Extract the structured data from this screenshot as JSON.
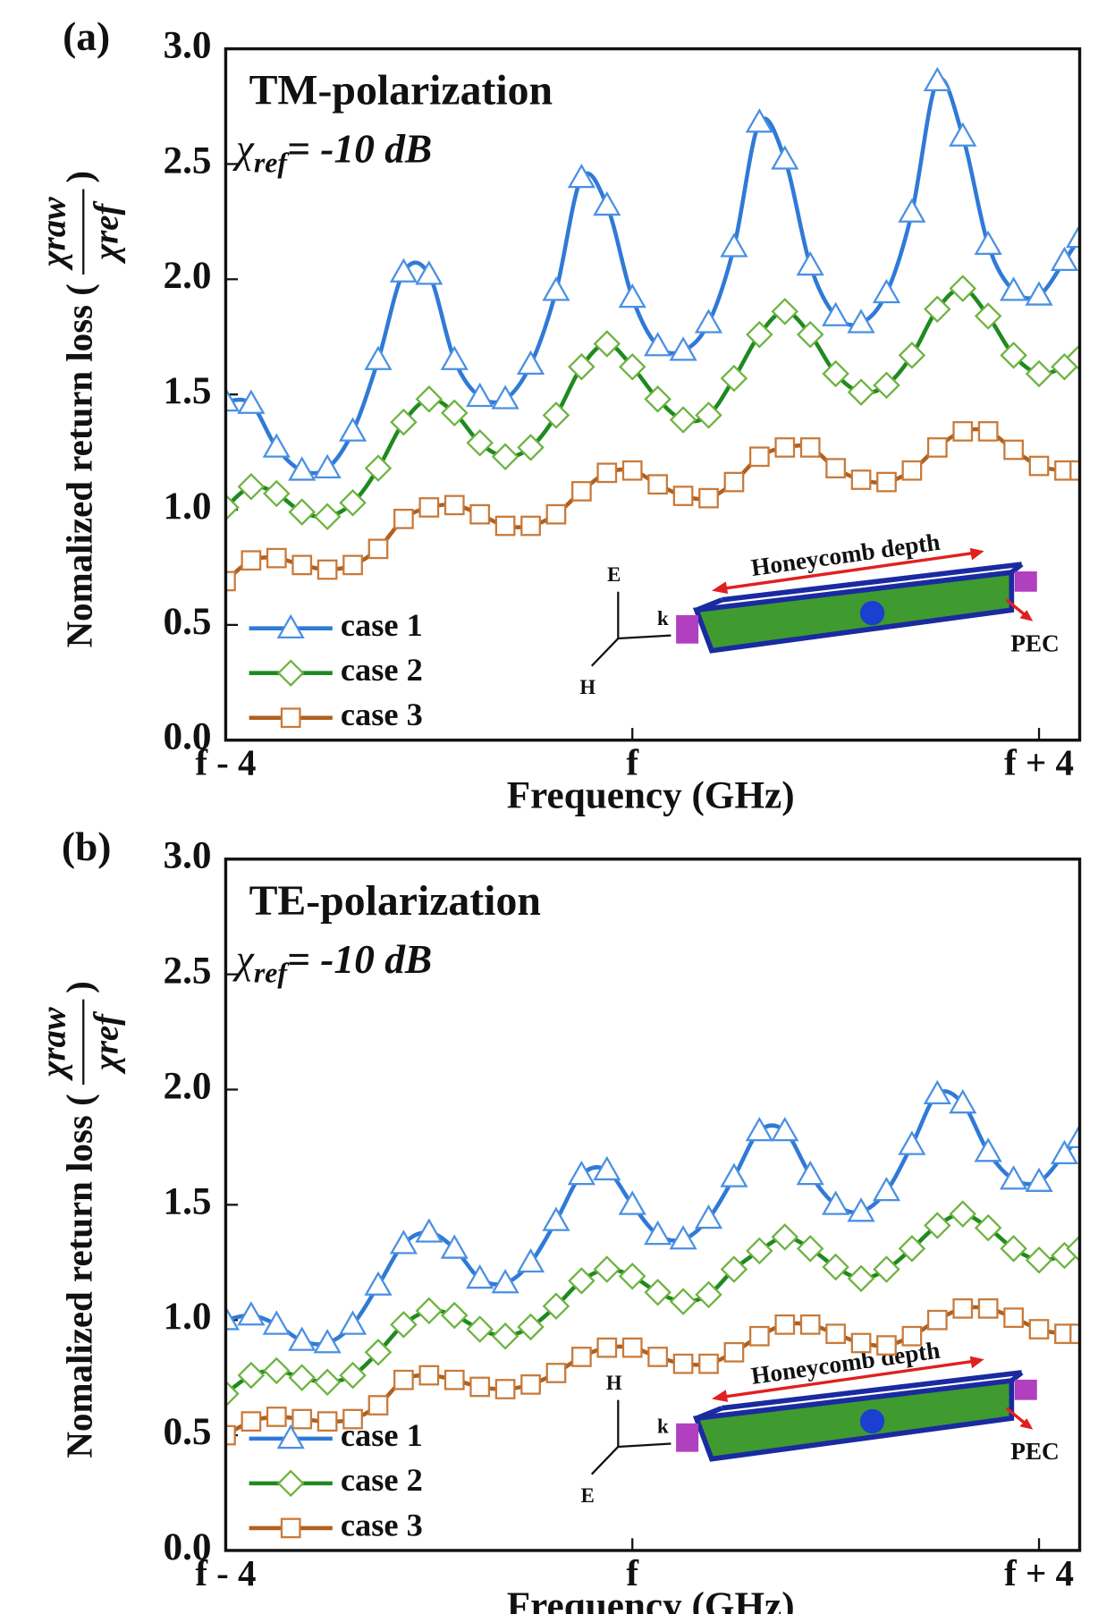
{
  "chart_data": [
    {
      "type": "line",
      "panel_label": "(a)",
      "annotation": "TM-polarization",
      "reference_label": {
        "symbol": "χ",
        "subscript": "ref",
        "text": "= -10 dB"
      },
      "ylabel": "Nomalized return loss (",
      "ylabel_fraction": {
        "numerator": "χraw",
        "denominator": "χref"
      },
      "ylabel_close": ")",
      "xlabel": "Frequency (GHz)",
      "xlim": [
        -4,
        4.4
      ],
      "ylim": [
        0,
        3
      ],
      "xticks": [
        {
          "value": -4,
          "label": "f - 4"
        },
        {
          "value": 0,
          "label": "f"
        },
        {
          "value": 4,
          "label": "f + 4"
        }
      ],
      "yticks": [
        {
          "value": 0,
          "label": "0.0"
        },
        {
          "value": 0.5,
          "label": "0.5"
        },
        {
          "value": 1,
          "label": "1.0"
        },
        {
          "value": 1.5,
          "label": "1.5"
        },
        {
          "value": 2,
          "label": "2.0"
        },
        {
          "value": 2.5,
          "label": "2.5"
        },
        {
          "value": 3,
          "label": "3.0"
        }
      ],
      "legend": "lower left",
      "inset_labels": {
        "depth": "Honeycomb depth",
        "pec": "PEC",
        "up": "E",
        "k": "k",
        "down": "H"
      },
      "x": [
        -4,
        -3.75,
        -3.5,
        -3.25,
        -3,
        -2.75,
        -2.5,
        -2.25,
        -2,
        -1.75,
        -1.5,
        -1.25,
        -1,
        -0.75,
        -0.5,
        -0.25,
        0,
        0.25,
        0.5,
        0.75,
        1,
        1.25,
        1.5,
        1.75,
        2,
        2.25,
        2.5,
        2.75,
        3,
        3.25,
        3.5,
        3.75,
        4,
        4.25,
        4.4
      ],
      "series": [
        {
          "name": "case 1",
          "color": "#2f7ad6",
          "marker_color": "#4a90e2",
          "marker": "triangle",
          "values": [
            1.47,
            1.46,
            1.27,
            1.17,
            1.18,
            1.34,
            1.65,
            2.03,
            2.02,
            1.65,
            1.49,
            1.48,
            1.63,
            1.95,
            2.44,
            2.32,
            1.92,
            1.71,
            1.69,
            1.81,
            2.14,
            2.68,
            2.52,
            2.06,
            1.84,
            1.81,
            1.94,
            2.29,
            2.86,
            2.62,
            2.15,
            1.95,
            1.93,
            2.08,
            2.18
          ]
        },
        {
          "name": "case 2",
          "color": "#1f8a1f",
          "marker_color": "#6cb33f",
          "marker": "diamond",
          "values": [
            1.01,
            1.1,
            1.07,
            0.99,
            0.97,
            1.03,
            1.18,
            1.38,
            1.48,
            1.42,
            1.29,
            1.23,
            1.27,
            1.41,
            1.62,
            1.72,
            1.62,
            1.48,
            1.39,
            1.41,
            1.57,
            1.76,
            1.86,
            1.76,
            1.59,
            1.51,
            1.54,
            1.67,
            1.87,
            1.96,
            1.84,
            1.67,
            1.59,
            1.62,
            1.66
          ]
        },
        {
          "name": "case 3",
          "color": "#b0601f",
          "marker_color": "#c87a3a",
          "marker": "square",
          "values": [
            0.69,
            0.78,
            0.79,
            0.76,
            0.74,
            0.76,
            0.83,
            0.96,
            1.01,
            1.02,
            0.98,
            0.93,
            0.93,
            0.98,
            1.08,
            1.16,
            1.17,
            1.11,
            1.06,
            1.05,
            1.12,
            1.23,
            1.27,
            1.27,
            1.18,
            1.13,
            1.12,
            1.17,
            1.27,
            1.34,
            1.34,
            1.26,
            1.19,
            1.17,
            1.17
          ]
        }
      ]
    },
    {
      "type": "line",
      "panel_label": "(b)",
      "annotation": "TE-polarization",
      "reference_label": {
        "symbol": "χ",
        "subscript": "ref",
        "text": "= -10 dB"
      },
      "ylabel": "Nomalized return loss (",
      "ylabel_fraction": {
        "numerator": "χraw",
        "denominator": "χref"
      },
      "ylabel_close": ")",
      "xlabel": "Frequency (GHz)",
      "xlim": [
        -4,
        4.4
      ],
      "ylim": [
        0,
        3
      ],
      "xticks": [
        {
          "value": -4,
          "label": "f - 4"
        },
        {
          "value": 0,
          "label": "f"
        },
        {
          "value": 4,
          "label": "f + 4"
        }
      ],
      "yticks": [
        {
          "value": 0,
          "label": "0.0"
        },
        {
          "value": 0.5,
          "label": "0.5"
        },
        {
          "value": 1,
          "label": "1.0"
        },
        {
          "value": 1.5,
          "label": "1.5"
        },
        {
          "value": 2,
          "label": "2.0"
        },
        {
          "value": 2.5,
          "label": "2.5"
        },
        {
          "value": 3,
          "label": "3.0"
        }
      ],
      "legend": "lower left",
      "inset_labels": {
        "depth": "Honeycomb depth",
        "pec": "PEC",
        "up": "H",
        "k": "k",
        "down": "E"
      },
      "x": [
        -4,
        -3.75,
        -3.5,
        -3.25,
        -3,
        -2.75,
        -2.5,
        -2.25,
        -2,
        -1.75,
        -1.5,
        -1.25,
        -1,
        -0.75,
        -0.5,
        -0.25,
        0,
        0.25,
        0.5,
        0.75,
        1,
        1.25,
        1.5,
        1.75,
        2,
        2.25,
        2.5,
        2.75,
        3,
        3.25,
        3.5,
        3.75,
        4,
        4.25,
        4.4
      ],
      "series": [
        {
          "name": "case 1",
          "color": "#2f7ad6",
          "marker_color": "#4a90e2",
          "marker": "triangle",
          "values": [
            1.0,
            1.02,
            0.98,
            0.91,
            0.9,
            0.98,
            1.15,
            1.33,
            1.38,
            1.31,
            1.18,
            1.16,
            1.25,
            1.43,
            1.63,
            1.65,
            1.5,
            1.37,
            1.35,
            1.44,
            1.62,
            1.82,
            1.82,
            1.63,
            1.5,
            1.47,
            1.56,
            1.76,
            1.98,
            1.94,
            1.73,
            1.61,
            1.6,
            1.72,
            1.79
          ]
        },
        {
          "name": "case 2",
          "color": "#1f8a1f",
          "marker_color": "#6cb33f",
          "marker": "diamond",
          "values": [
            0.68,
            0.76,
            0.78,
            0.75,
            0.73,
            0.76,
            0.86,
            0.98,
            1.04,
            1.02,
            0.96,
            0.93,
            0.97,
            1.06,
            1.17,
            1.22,
            1.19,
            1.12,
            1.08,
            1.11,
            1.22,
            1.3,
            1.36,
            1.31,
            1.23,
            1.18,
            1.22,
            1.31,
            1.41,
            1.46,
            1.4,
            1.31,
            1.26,
            1.28,
            1.31
          ]
        },
        {
          "name": "case 3",
          "color": "#b0601f",
          "marker_color": "#c87a3a",
          "marker": "square",
          "values": [
            0.5,
            0.56,
            0.58,
            0.57,
            0.56,
            0.57,
            0.63,
            0.74,
            0.76,
            0.74,
            0.71,
            0.7,
            0.72,
            0.77,
            0.84,
            0.88,
            0.88,
            0.84,
            0.81,
            0.81,
            0.86,
            0.93,
            0.98,
            0.98,
            0.94,
            0.9,
            0.89,
            0.93,
            1.0,
            1.05,
            1.05,
            1.01,
            0.96,
            0.94,
            0.94
          ]
        }
      ]
    }
  ]
}
